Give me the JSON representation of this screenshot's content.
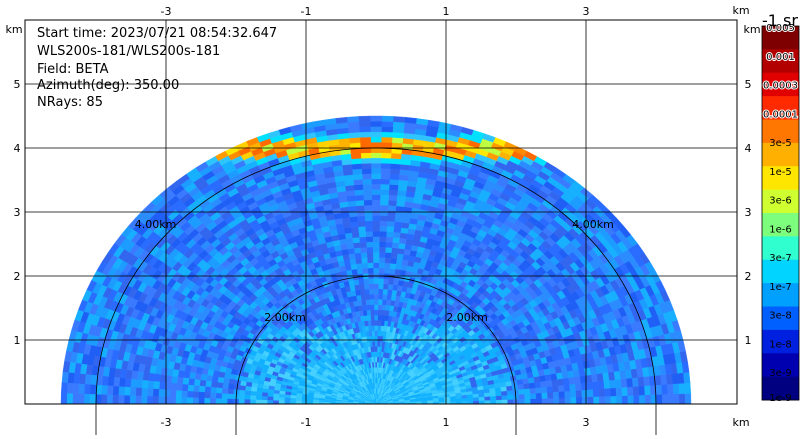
{
  "info": {
    "start_time": "Start time: 2023/07/21 08:54:32.647",
    "instrument": "WLS200s-181/WLS200s-181",
    "field": "Field: BETA",
    "azimuth": "Azimuth(deg): 350.00",
    "nrays": "NRays: 85"
  },
  "colorbar": {
    "units": "-1 sr",
    "labels": [
      "0.005",
      "0.001",
      "0.0003",
      "0.0001",
      "3e-5",
      "1e-5",
      "3e-6",
      "1e-6",
      "3e-7",
      "1e-7",
      "3e-8",
      "1e-8",
      "3e-9",
      "1e-9"
    ],
    "colors": [
      "#7f0000",
      "#b20000",
      "#e00000",
      "#ff2a00",
      "#ff7700",
      "#ffb000",
      "#ffe600",
      "#cfff30",
      "#7dff7d",
      "#30ffcf",
      "#00d4ff",
      "#00a0ff",
      "#0060ff",
      "#0020e0",
      "#0000b0",
      "#000080"
    ]
  },
  "chart_data": {
    "type": "heatmap",
    "title": "",
    "xlabel": "km",
    "ylabel": "km",
    "x_ticks": [
      "-3",
      "-1",
      "1",
      "3"
    ],
    "y_ticks": [
      "1",
      "2",
      "3",
      "4",
      "5"
    ],
    "x_range_km": [
      -3.0,
      4.0
    ],
    "y_range_km": [
      0.0,
      5.6
    ],
    "range_ring_labels": [
      "2.00km",
      "2.00km",
      "4.00km",
      "4.00km"
    ],
    "range_rings_km": [
      2.0,
      4.0
    ],
    "scan_extent_km": 4.5,
    "aerosol_layer_height_km": 4.0,
    "background_beta": "3e-8",
    "aerosol_layer_beta": "3e-5",
    "grid": true
  }
}
